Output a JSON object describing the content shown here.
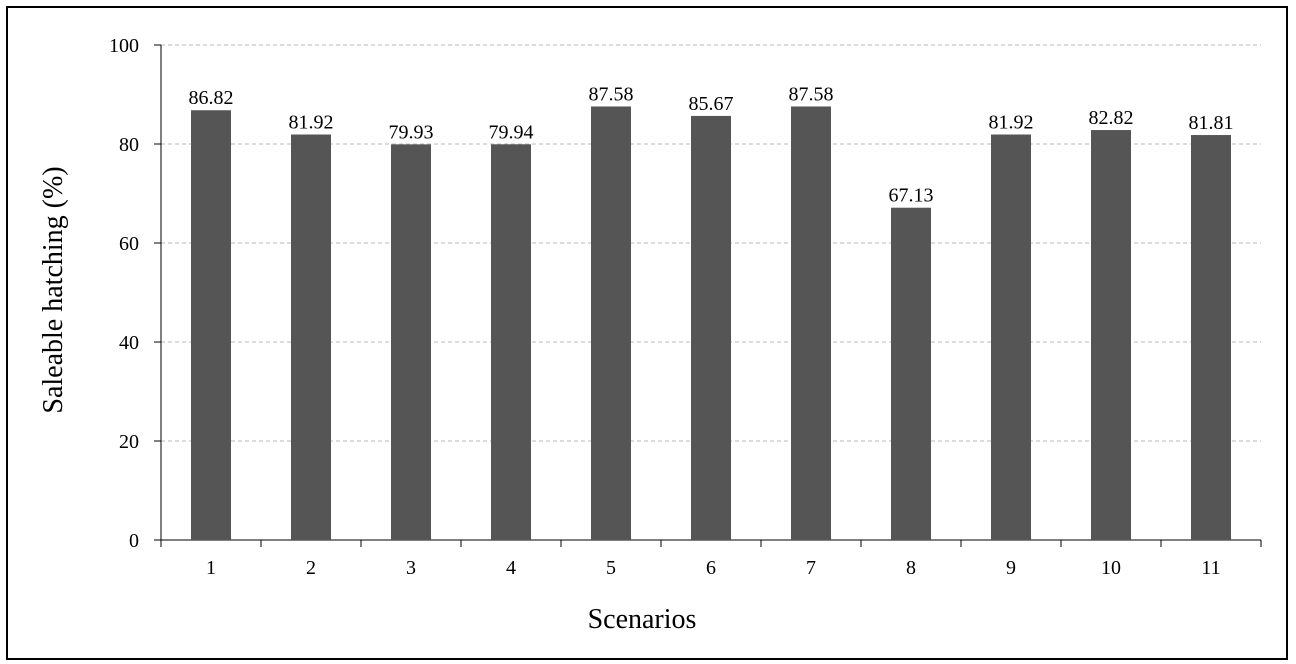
{
  "chart_data": {
    "type": "bar",
    "title": "",
    "xlabel": "Scenarios",
    "ylabel": "Saleable hatching (%)",
    "categories": [
      "1",
      "2",
      "3",
      "4",
      "5",
      "6",
      "7",
      "8",
      "9",
      "10",
      "11"
    ],
    "values": [
      86.82,
      81.92,
      79.93,
      79.94,
      87.58,
      85.67,
      87.58,
      67.13,
      81.92,
      82.82,
      81.81
    ],
    "data_labels": [
      "86.82",
      "81.92",
      "79.93",
      "79.94",
      "87.58",
      "85.67",
      "87.58",
      "67.13",
      "81.92",
      "82.82",
      "81.81"
    ],
    "ylim": [
      0,
      100
    ],
    "yticks": [
      "0",
      "20",
      "40",
      "60",
      "80",
      "100"
    ],
    "grid": "horizontal dashed",
    "bar_color": "#555555",
    "grid_color": "#c8c8c8",
    "legend": "none"
  }
}
